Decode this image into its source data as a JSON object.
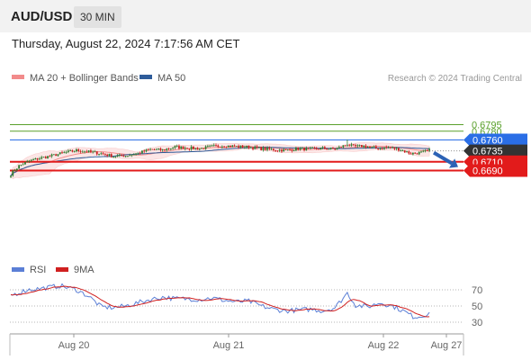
{
  "header": {
    "symbol": "AUD/USD",
    "timeframe": "30 MIN",
    "datetime": "Thursday, August 22, 2024 7:17:56 AM CET"
  },
  "colors": {
    "bollinger": "#f28b8b",
    "ma50": "#2e5c9a",
    "target": "#5aa02c",
    "pivot": "#2a6ee6",
    "support": "#e21b1b",
    "current": "#333333",
    "arrow": "#2c62b5",
    "rsi": "#5b7fd6",
    "rsi_ma": "#d02020",
    "candle_up": "#2f7a2f",
    "candle_down": "#c81e1e"
  },
  "chart_data": [
    {
      "type": "candlestick",
      "legend": [
        {
          "name": "MA 20 + Bollinger Bands",
          "icon": "pink-swatch"
        },
        {
          "name": "MA 50",
          "icon": "blue-swatch"
        }
      ],
      "credit": "Research © 2024 Trading Central",
      "x_ticks": [
        "Aug 20",
        "Aug 21",
        "Aug 22",
        "Aug 27"
      ],
      "levels": [
        {
          "value": 0.6795,
          "label": "0.6795",
          "kind": "target"
        },
        {
          "value": 0.678,
          "label": "0.6780",
          "kind": "target"
        },
        {
          "value": 0.676,
          "label": "0.6760",
          "kind": "pivot"
        },
        {
          "value": 0.6735,
          "label": "0.6735",
          "kind": "current"
        },
        {
          "value": 0.671,
          "label": "0.6710",
          "kind": "support"
        },
        {
          "value": 0.669,
          "label": "0.6690",
          "kind": "support"
        }
      ],
      "forecast": {
        "from": 0.6735,
        "to": 0.669,
        "direction": "down"
      },
      "price_anchors": [
        [
          0,
          0.6682
        ],
        [
          4,
          0.6701
        ],
        [
          9,
          0.6712
        ],
        [
          14,
          0.6718
        ],
        [
          20,
          0.6724
        ],
        [
          26,
          0.6731
        ],
        [
          32,
          0.6736
        ],
        [
          38,
          0.6733
        ],
        [
          44,
          0.6729
        ],
        [
          50,
          0.6723
        ],
        [
          56,
          0.6724
        ],
        [
          62,
          0.673
        ],
        [
          68,
          0.6738
        ],
        [
          74,
          0.6737
        ],
        [
          80,
          0.6744
        ],
        [
          86,
          0.6742
        ],
        [
          92,
          0.674
        ],
        [
          98,
          0.6745
        ],
        [
          104,
          0.6747
        ],
        [
          110,
          0.6745
        ],
        [
          116,
          0.6744
        ],
        [
          122,
          0.674
        ],
        [
          128,
          0.6738
        ],
        [
          134,
          0.6736
        ],
        [
          140,
          0.674
        ],
        [
          146,
          0.6739
        ],
        [
          152,
          0.6741
        ],
        [
          158,
          0.6739
        ],
        [
          161,
          0.6744
        ],
        [
          164,
          0.675
        ],
        [
          167,
          0.6745
        ],
        [
          172,
          0.6746
        ],
        [
          178,
          0.6741
        ],
        [
          184,
          0.6743
        ],
        [
          189,
          0.6739
        ],
        [
          195,
          0.6729
        ],
        [
          200,
          0.6731
        ],
        [
          204,
          0.6736
        ]
      ]
    },
    {
      "type": "line",
      "name": "RSI",
      "legend": [
        {
          "name": "RSI",
          "icon": "blue-swatch"
        },
        {
          "name": "9MA",
          "icon": "red-swatch"
        }
      ],
      "y_ticks": [
        70,
        50,
        30
      ],
      "ylim": [
        20,
        80
      ],
      "rsi_anchors": [
        [
          0,
          63
        ],
        [
          8,
          70
        ],
        [
          16,
          72
        ],
        [
          24,
          75
        ],
        [
          32,
          70
        ],
        [
          38,
          62
        ],
        [
          44,
          49
        ],
        [
          50,
          48
        ],
        [
          56,
          50
        ],
        [
          62,
          54
        ],
        [
          68,
          58
        ],
        [
          74,
          61
        ],
        [
          80,
          59
        ],
        [
          86,
          59
        ],
        [
          92,
          58
        ],
        [
          98,
          60
        ],
        [
          104,
          57
        ],
        [
          110,
          55
        ],
        [
          116,
          56
        ],
        [
          122,
          50
        ],
        [
          128,
          46
        ],
        [
          134,
          44
        ],
        [
          140,
          45
        ],
        [
          146,
          46
        ],
        [
          152,
          44
        ],
        [
          158,
          48
        ],
        [
          164,
          66
        ],
        [
          168,
          51
        ],
        [
          174,
          49
        ],
        [
          180,
          54
        ],
        [
          186,
          50
        ],
        [
          192,
          43
        ],
        [
          196,
          37
        ],
        [
          200,
          37
        ],
        [
          204,
          42
        ]
      ]
    }
  ]
}
